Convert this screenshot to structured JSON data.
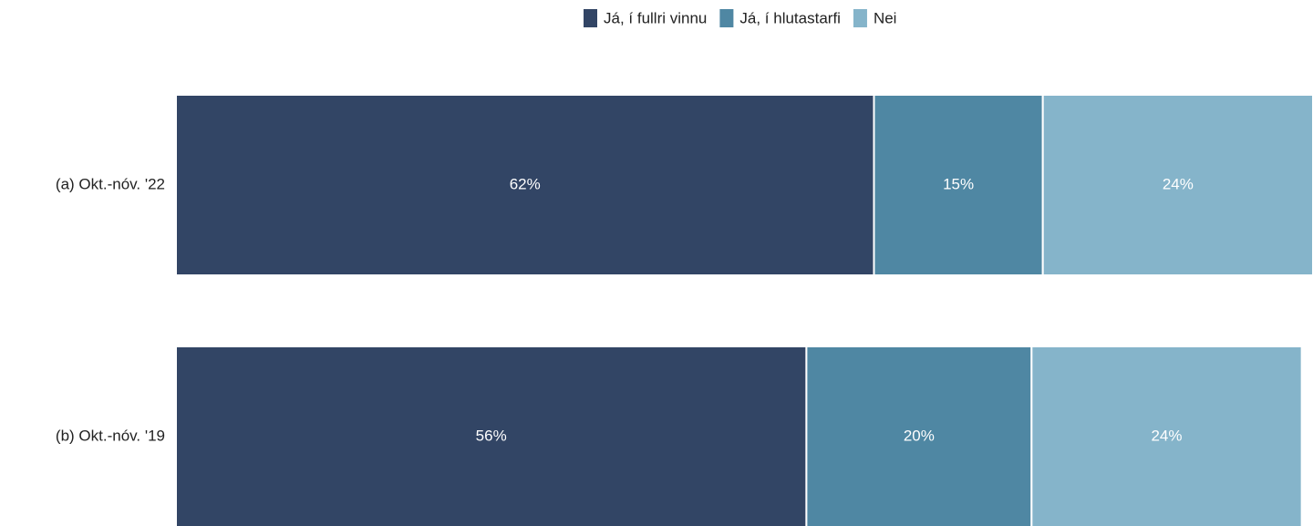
{
  "chart_data": {
    "type": "stacked-bar",
    "orientation": "horizontal",
    "categories": [
      "(a) Okt.-nóv. '22",
      "(b) Okt.-nóv. '19"
    ],
    "series": [
      {
        "name": "Já, í fullri vinnu",
        "color": "#324565",
        "values": [
          62,
          56
        ],
        "value_labels": [
          "62%",
          "56%"
        ]
      },
      {
        "name": "Já, í hlutastarfi",
        "color": "#4f87a3",
        "values": [
          15,
          20
        ],
        "value_labels": [
          "15%",
          "20%"
        ]
      },
      {
        "name": "Nei",
        "color": "#85b4ca",
        "values": [
          24,
          24
        ],
        "value_labels": [
          "24%",
          "24%"
        ]
      }
    ],
    "legend": "top"
  }
}
